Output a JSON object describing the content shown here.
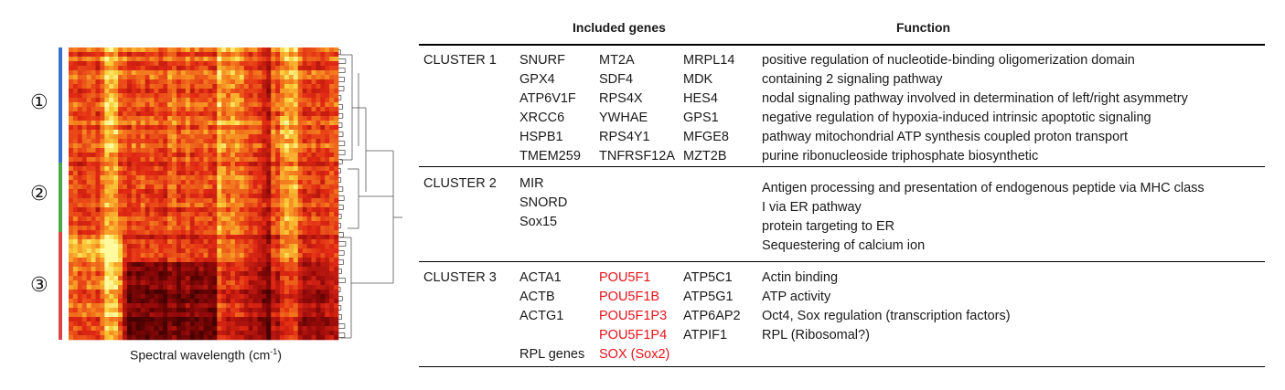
{
  "heatmap": {
    "xlabel_main": "Spectral wavelength (cm",
    "xlabel_sup": "-1",
    "xlabel_end": ")",
    "clusters": [
      {
        "marker": "①",
        "color": "#3b6fc9"
      },
      {
        "marker": "②",
        "color": "#4aa84a"
      },
      {
        "marker": "③",
        "color": "#d94545"
      }
    ]
  },
  "table": {
    "headers": {
      "genes": "Included genes",
      "function": "Function"
    },
    "clusters": [
      {
        "name": "CLUSTER 1",
        "genes_col1": [
          "SNURF",
          "GPX4",
          "ATP6V1F",
          "XRCC6",
          "HSPB1",
          "TMEM259"
        ],
        "genes_col2": [
          "MT2A",
          "SDF4",
          "RPS4X",
          "YWHAE",
          "RPS4Y1",
          "TNFRSF12A"
        ],
        "genes_col3": [
          "MRPL14",
          "MDK",
          "HES4",
          "GPS1",
          "MFGE8",
          "MZT2B"
        ],
        "functions": [
          "positive regulation of nucleotide-binding oligomerization domain",
          "containing 2 signaling pathway",
          "nodal signaling pathway involved in determination of left/right asymmetry",
          "negative regulation of hypoxia-induced intrinsic apoptotic signaling",
          "pathway mitochondrial ATP synthesis coupled proton transport",
          "purine ribonucleoside triphosphate biosynthetic"
        ]
      },
      {
        "name": "CLUSTER 2",
        "genes_col1": [
          "MIR",
          "SNORD",
          "Sox15"
        ],
        "functions": [
          "Antigen processing and presentation of endogenous peptide via MHC class",
          "I via ER pathway",
          "protein targeting to ER",
          "Sequestering of calcium ion"
        ]
      },
      {
        "name": "CLUSTER 3",
        "genes_col1": [
          "ACTA1",
          "ACTB",
          "ACTG1",
          "",
          "RPL genes"
        ],
        "genes_col2": [
          "POU5F1",
          "POU5F1B",
          "POU5F1P3",
          "POU5F1P4",
          "SOX (Sox2)"
        ],
        "genes_col3": [
          "ATP5C1",
          "ATP5G1",
          "ATP6AP2",
          "ATPIF1"
        ],
        "functions": [
          "Actin binding",
          "ATP activity",
          "Oct4, Sox regulation (transcription factors)",
          "RPL (Ribosomal?)"
        ]
      }
    ],
    "highlight_color": "#e8141b"
  }
}
